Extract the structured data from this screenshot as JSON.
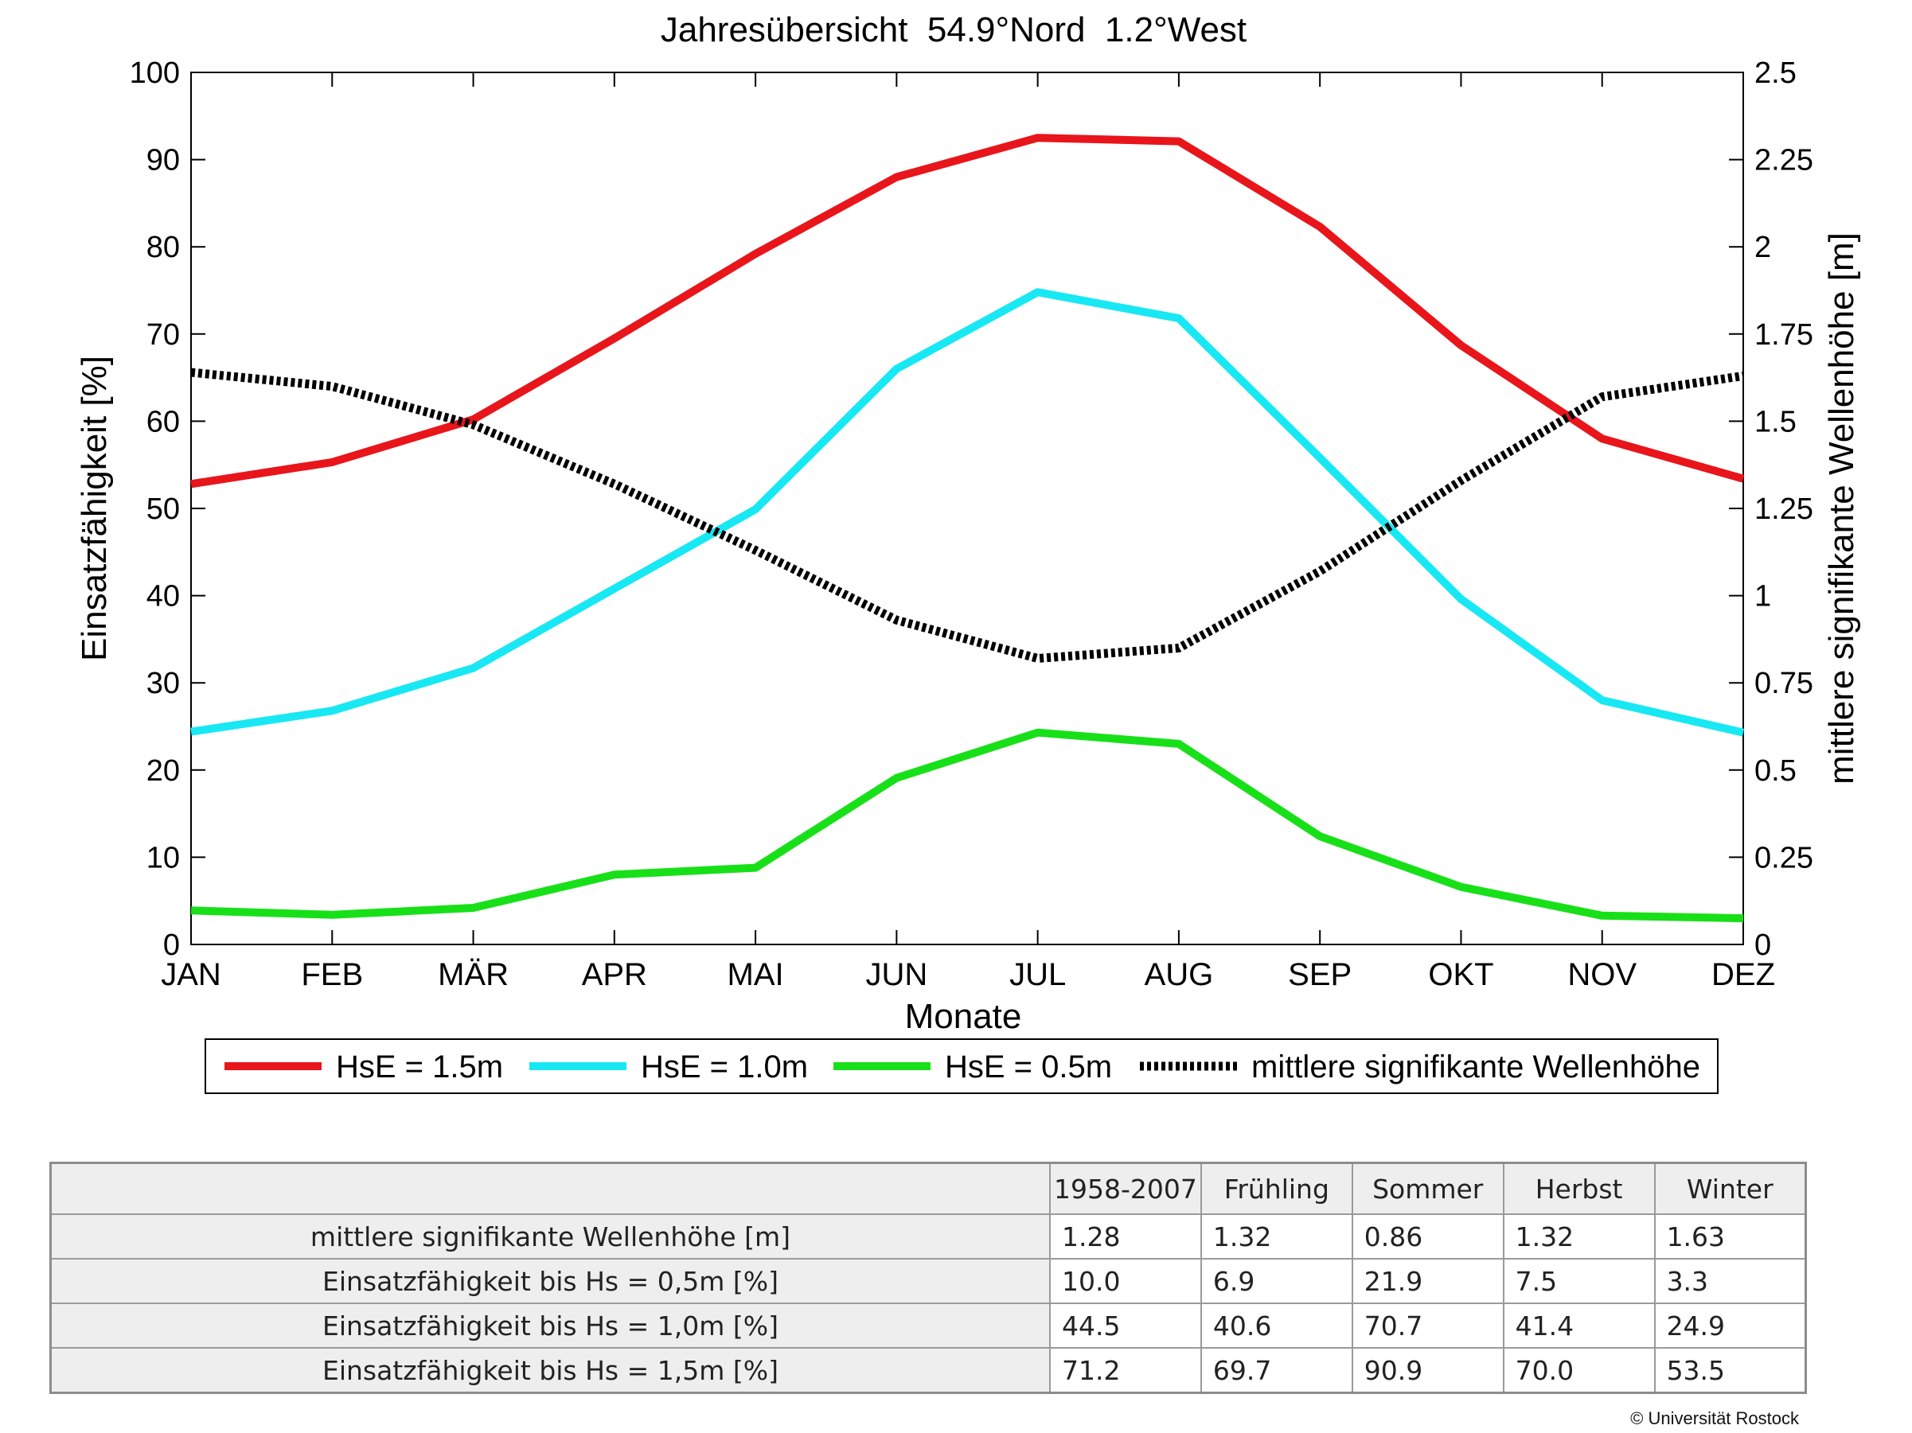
{
  "chart_data": {
    "type": "line",
    "title": "Jahresübersicht  54.9°Nord  1.2°West",
    "xlabel": "Monate",
    "ylabel": "Einsatzfähigkeit [%]",
    "ylabel_right": "mittlere signifikante Wellenhöhe [m]",
    "categories": [
      "JAN",
      "FEB",
      "MÄR",
      "APR",
      "MAI",
      "JUN",
      "JUL",
      "AUG",
      "SEP",
      "OKT",
      "NOV",
      "DEZ"
    ],
    "ylim": [
      0,
      100
    ],
    "yticks": [
      "0",
      "10",
      "20",
      "30",
      "40",
      "50",
      "60",
      "70",
      "80",
      "90",
      "100"
    ],
    "ylim_right": [
      0,
      2.5
    ],
    "yticks_right": [
      "0",
      "0.25",
      "0.5",
      "0.75",
      "1",
      "1.25",
      "1.5",
      "1.75",
      "2",
      "2.25",
      "2.5"
    ],
    "grid": false,
    "legend_position": "bottom",
    "series": [
      {
        "name": "HsE = 1.5m",
        "axis": "left",
        "color": "#e8151b",
        "style": "solid",
        "values": [
          52.8,
          55.3,
          60.2,
          69.5,
          79.2,
          88.0,
          92.5,
          92.1,
          82.3,
          68.7,
          58.0,
          53.4
        ]
      },
      {
        "name": "HsE = 1.0m",
        "axis": "left",
        "color": "#18e8f3",
        "style": "solid",
        "values": [
          24.4,
          26.8,
          31.7,
          40.8,
          49.9,
          66.0,
          74.8,
          71.8,
          55.8,
          39.6,
          28.0,
          24.3
        ]
      },
      {
        "name": "HsE = 0.5m",
        "axis": "left",
        "color": "#18e018",
        "style": "solid",
        "values": [
          3.9,
          3.4,
          4.2,
          8.0,
          8.8,
          19.1,
          24.3,
          23.0,
          12.4,
          6.6,
          3.3,
          3.0
        ]
      },
      {
        "name": "mittlere signifikante Wellenhöhe",
        "axis": "right",
        "color": "#000000",
        "style": "dotted",
        "values": [
          1.64,
          1.6,
          1.49,
          1.32,
          1.13,
          0.93,
          0.82,
          0.85,
          1.07,
          1.33,
          1.57,
          1.63
        ]
      }
    ]
  },
  "table": {
    "headers": [
      "1958-2007",
      "Frühling",
      "Sommer",
      "Herbst",
      "Winter"
    ],
    "rows": [
      {
        "label": "mittlere signifikante Wellenhöhe [m]",
        "values": [
          "1.28",
          "1.32",
          "0.86",
          "1.32",
          "1.63"
        ]
      },
      {
        "label": "Einsatzfähigkeit bis Hs = 0,5m [%]",
        "values": [
          "10.0",
          " 6.9",
          "21.9",
          " 7.5",
          " 3.3"
        ]
      },
      {
        "label": "Einsatzfähigkeit bis Hs = 1,0m [%]",
        "values": [
          "44.5",
          "40.6",
          "70.7",
          "41.4",
          "24.9"
        ]
      },
      {
        "label": "Einsatzfähigkeit bis Hs = 1,5m [%]",
        "values": [
          "71.2",
          "69.7",
          "90.9",
          "70.0",
          "53.5"
        ]
      }
    ]
  },
  "copyright": "© Universität Rostock"
}
